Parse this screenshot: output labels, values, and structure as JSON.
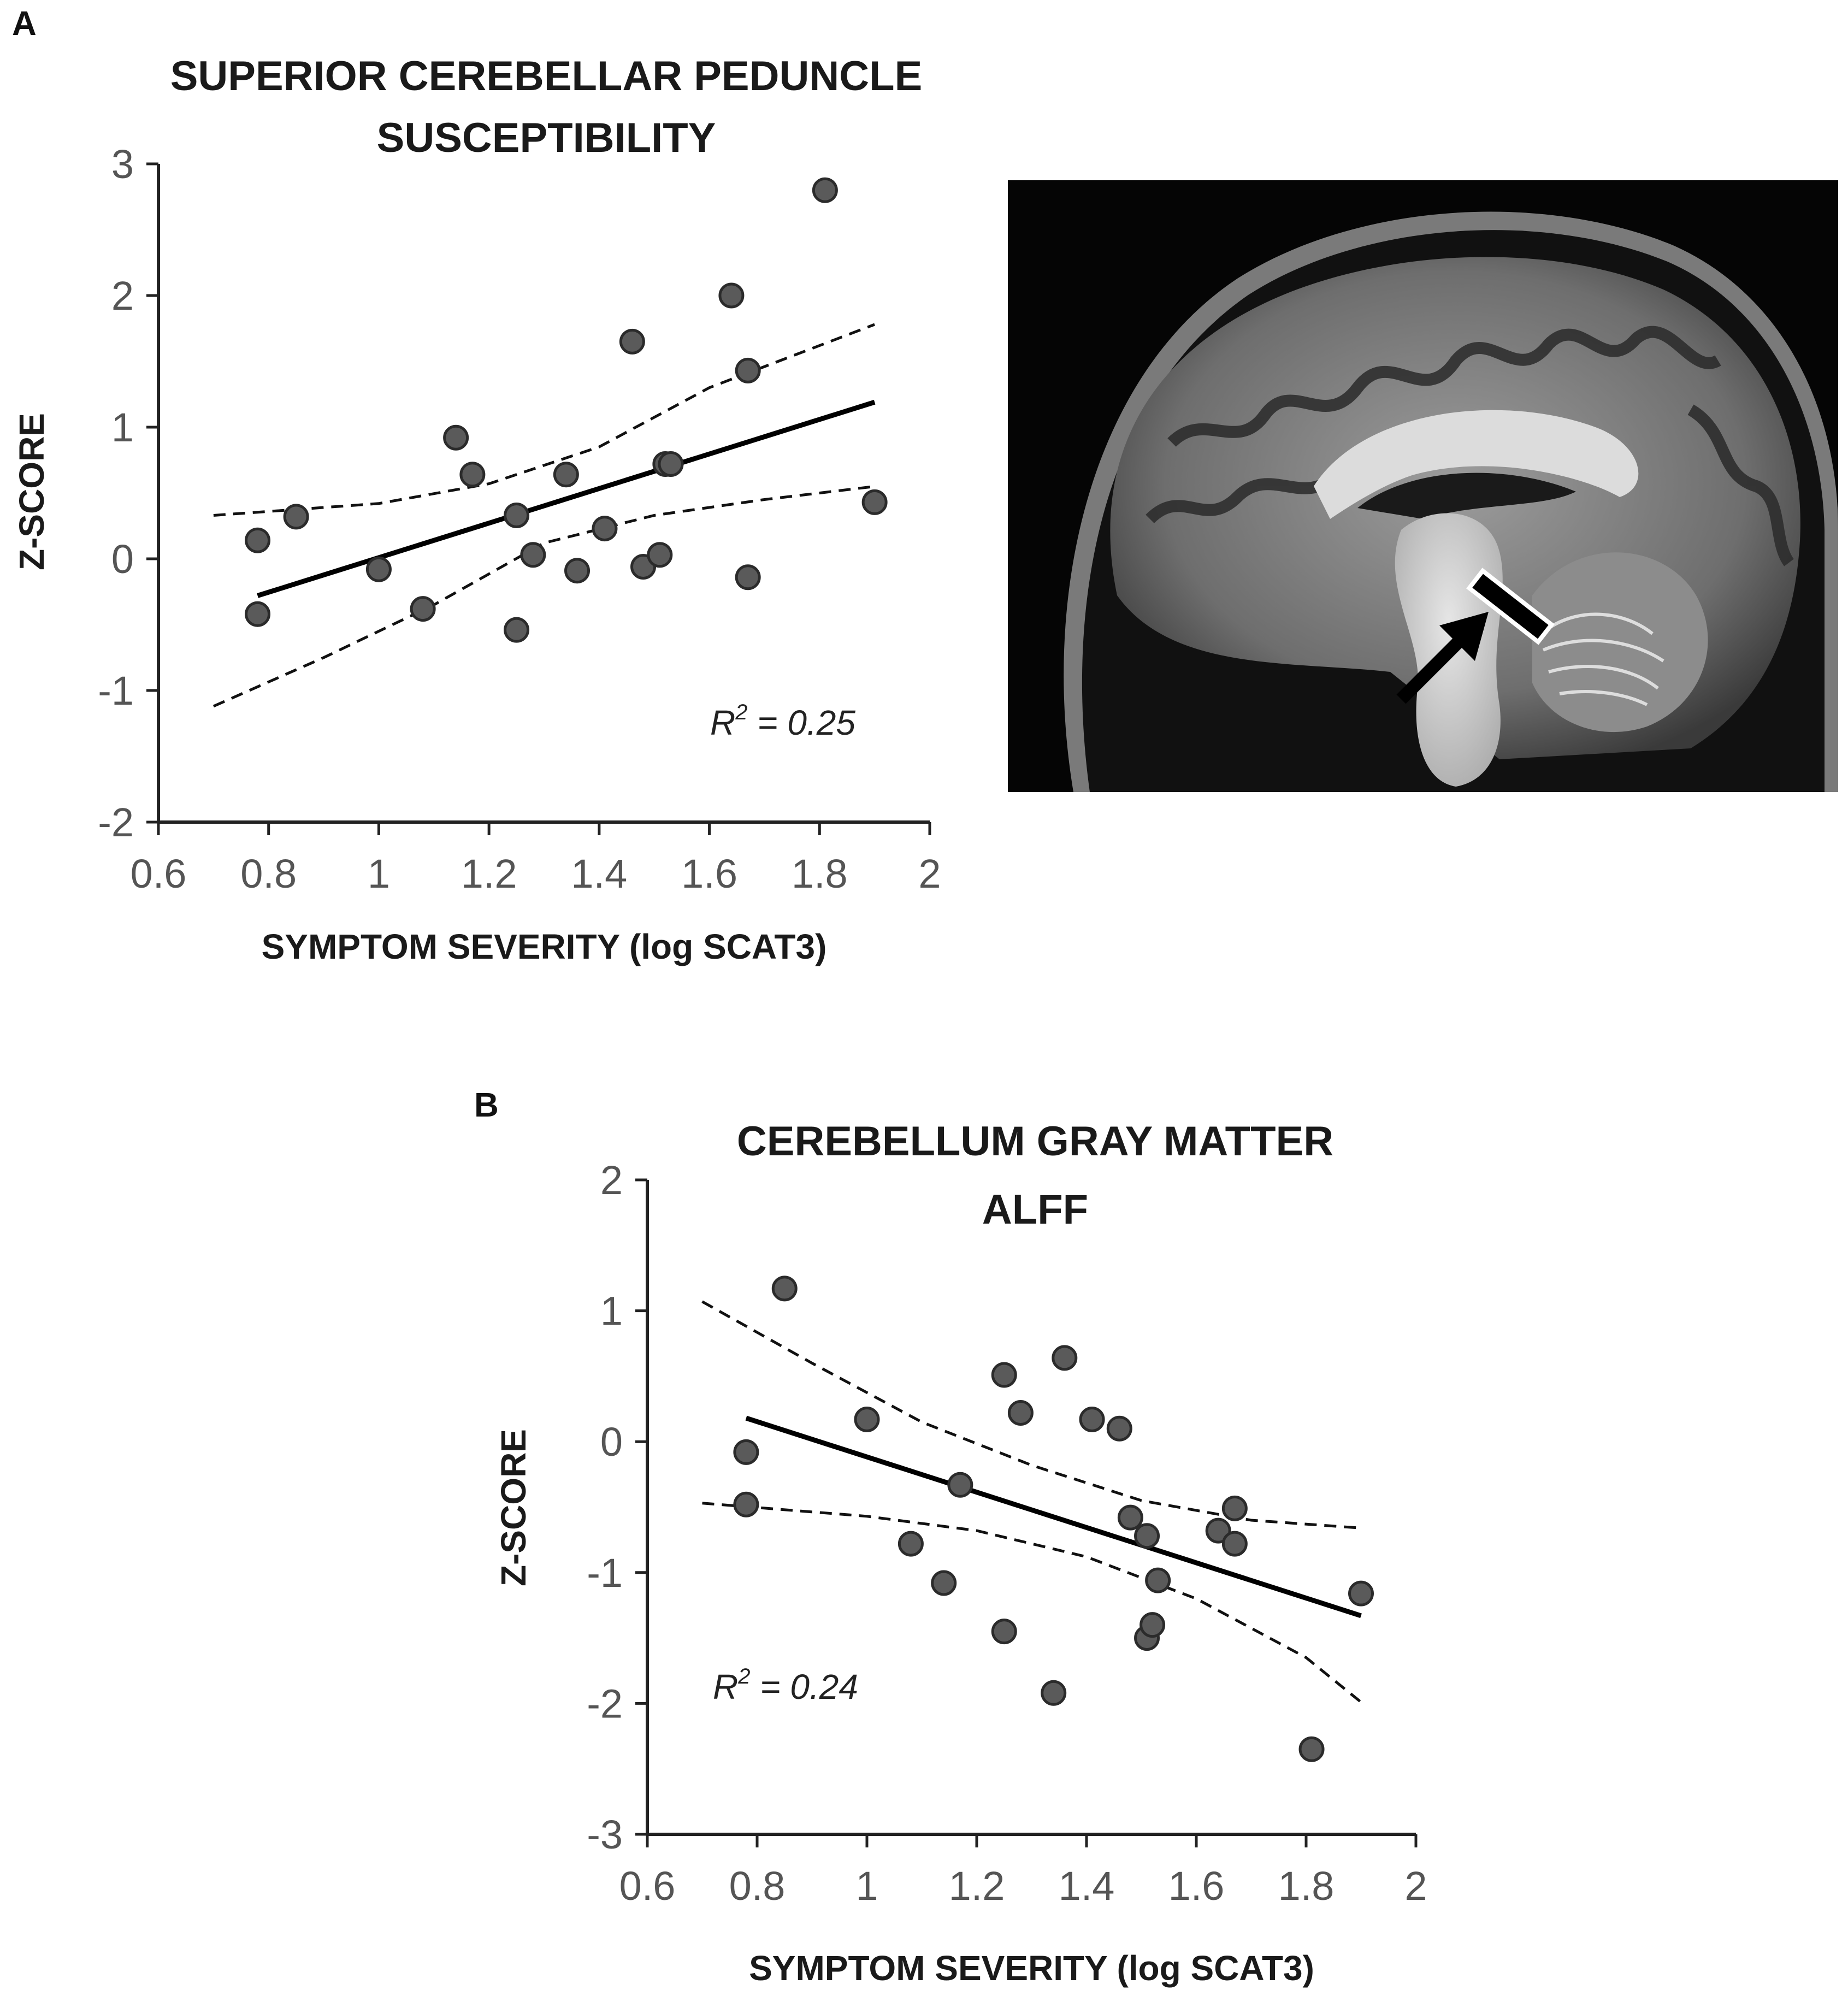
{
  "panel_a_label": "A",
  "panel_b_label": "B",
  "chart_data": [
    {
      "type": "scatter",
      "title_lines": [
        "SUPERIOR CEREBELLAR PEDUNCLE",
        "SUSCEPTIBILITY"
      ],
      "xlabel": "SYMPTOM SEVERITY (log SCAT3)",
      "ylabel": "Z-SCORE",
      "xlim": [
        0.6,
        2
      ],
      "ylim": [
        -2,
        3
      ],
      "xticks": [
        "0.6",
        "0.8",
        "1",
        "1.2",
        "1.4",
        "1.6",
        "1.8",
        "2"
      ],
      "yticks": [
        "3",
        "2",
        "1",
        "0",
        "-1",
        "-2"
      ],
      "annotation": "R² = 0.25",
      "r2_prefix": "R",
      "r2_exp": "2",
      "r2_value": " = 0.25",
      "points": [
        [
          0.78,
          0.14
        ],
        [
          0.78,
          -0.42
        ],
        [
          0.85,
          0.32
        ],
        [
          1.0,
          -0.08
        ],
        [
          1.08,
          -0.38
        ],
        [
          1.14,
          0.92
        ],
        [
          1.17,
          0.64
        ],
        [
          1.25,
          0.33
        ],
        [
          1.25,
          -0.54
        ],
        [
          1.28,
          0.03
        ],
        [
          1.34,
          0.64
        ],
        [
          1.36,
          -0.09
        ],
        [
          1.41,
          0.23
        ],
        [
          1.46,
          1.65
        ],
        [
          1.48,
          -0.06
        ],
        [
          1.51,
          0.03
        ],
        [
          1.52,
          0.72
        ],
        [
          1.53,
          0.72
        ],
        [
          1.64,
          2.0
        ],
        [
          1.67,
          1.43
        ],
        [
          1.67,
          -0.14
        ],
        [
          1.81,
          2.8
        ],
        [
          1.9,
          0.43
        ]
      ],
      "fit_line": [
        [
          0.78,
          -0.28
        ],
        [
          1.9,
          1.19
        ]
      ],
      "ci_upper": [
        [
          0.7,
          0.33
        ],
        [
          1.0,
          0.42
        ],
        [
          1.2,
          0.57
        ],
        [
          1.4,
          0.85
        ],
        [
          1.6,
          1.3
        ],
        [
          1.9,
          1.78
        ]
      ],
      "ci_lower": [
        [
          0.7,
          -1.12
        ],
        [
          0.9,
          -0.75
        ],
        [
          1.1,
          -0.35
        ],
        [
          1.3,
          0.12
        ],
        [
          1.5,
          0.33
        ],
        [
          1.7,
          0.45
        ],
        [
          1.9,
          0.55
        ]
      ]
    },
    {
      "type": "scatter",
      "title_lines": [
        "CEREBELLUM GRAY MATTER",
        "ALFF"
      ],
      "xlabel": "SYMPTOM SEVERITY (log SCAT3)",
      "ylabel": "Z-SCORE",
      "xlim": [
        0.6,
        2
      ],
      "ylim": [
        -3,
        2
      ],
      "xticks": [
        "0.6",
        "0.8",
        "1",
        "1.2",
        "1.4",
        "1.6",
        "1.8",
        "2"
      ],
      "yticks": [
        "2",
        "1",
        "0",
        "-1",
        "-2",
        "-3"
      ],
      "annotation": "R² = 0.24",
      "r2_prefix": "R",
      "r2_exp": "2",
      "r2_value": " = 0.24",
      "points": [
        [
          0.78,
          -0.08
        ],
        [
          0.78,
          -0.48
        ],
        [
          0.85,
          1.17
        ],
        [
          1.0,
          0.17
        ],
        [
          1.08,
          -0.78
        ],
        [
          1.14,
          -1.08
        ],
        [
          1.17,
          -0.33
        ],
        [
          1.25,
          0.51
        ],
        [
          1.25,
          -1.45
        ],
        [
          1.28,
          0.22
        ],
        [
          1.34,
          -1.92
        ],
        [
          1.36,
          0.64
        ],
        [
          1.41,
          0.17
        ],
        [
          1.46,
          0.1
        ],
        [
          1.48,
          -0.58
        ],
        [
          1.51,
          -0.72
        ],
        [
          1.51,
          -1.5
        ],
        [
          1.52,
          -1.4
        ],
        [
          1.53,
          -1.06
        ],
        [
          1.64,
          -0.68
        ],
        [
          1.67,
          -0.51
        ],
        [
          1.67,
          -0.78
        ],
        [
          1.81,
          -2.35
        ],
        [
          1.9,
          -1.16
        ]
      ],
      "fit_line": [
        [
          0.78,
          0.18
        ],
        [
          1.9,
          -1.33
        ]
      ],
      "ci_upper": [
        [
          0.7,
          1.07
        ],
        [
          0.9,
          0.6
        ],
        [
          1.1,
          0.15
        ],
        [
          1.3,
          -0.18
        ],
        [
          1.5,
          -0.45
        ],
        [
          1.7,
          -0.6
        ],
        [
          1.9,
          -0.66
        ]
      ],
      "ci_lower": [
        [
          0.7,
          -0.47
        ],
        [
          1.0,
          -0.57
        ],
        [
          1.2,
          -0.68
        ],
        [
          1.4,
          -0.88
        ],
        [
          1.6,
          -1.2
        ],
        [
          1.8,
          -1.65
        ],
        [
          1.9,
          -1.99
        ]
      ]
    }
  ]
}
